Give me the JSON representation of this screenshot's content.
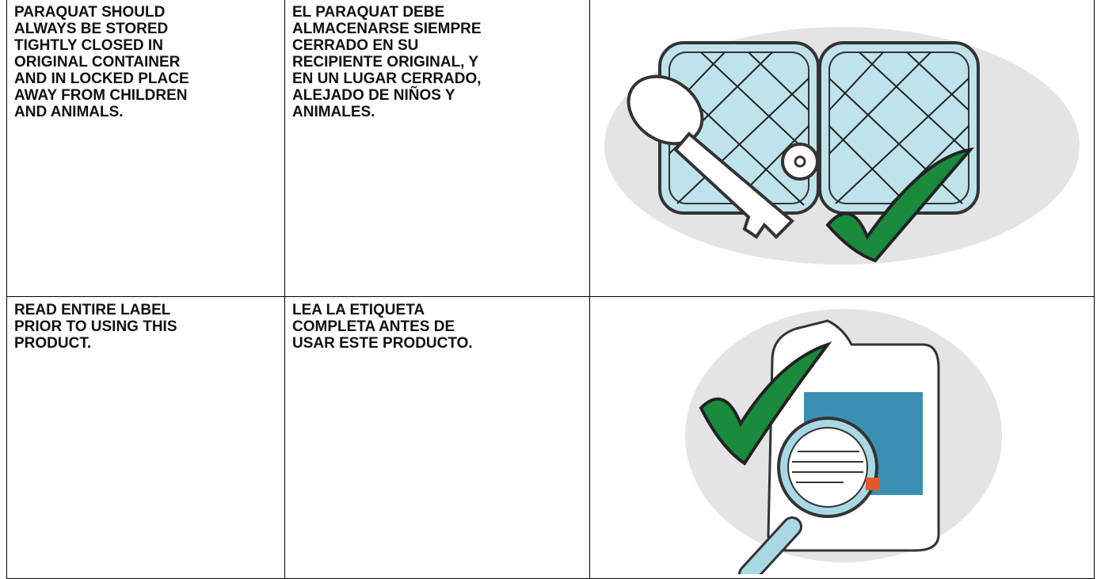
{
  "table": {
    "rows": [
      [
        [
          "PARAQUAT SHOULD",
          "ALWAYS BE STORED",
          "TIGHTLY CLOSED IN",
          "ORIGINAL CONTAINER",
          "AND IN LOCKED PLACE",
          "AWAY FROM CHILDREN",
          "AND ANIMALS."
        ],
        [
          "EL PARAQUAT DEBE",
          "ALMACENARSE SIEMPRE",
          "CERRADO EN SU",
          "RECIPIENTE ORIGINAL, Y",
          "EN UN LUGAR CERRADO,",
          "ALEJADO DE NIÑOS Y",
          "ANIMALES."
        ]
      ],
      [
        [
          "READ ENTIRE LABEL",
          "PRIOR TO USING THIS",
          "PRODUCT."
        ],
        [
          "LEA LA ETIQUETA",
          "COMPLETA ANTES DE",
          "USAR ESTE PRODUCTO."
        ]
      ]
    ]
  }
}
